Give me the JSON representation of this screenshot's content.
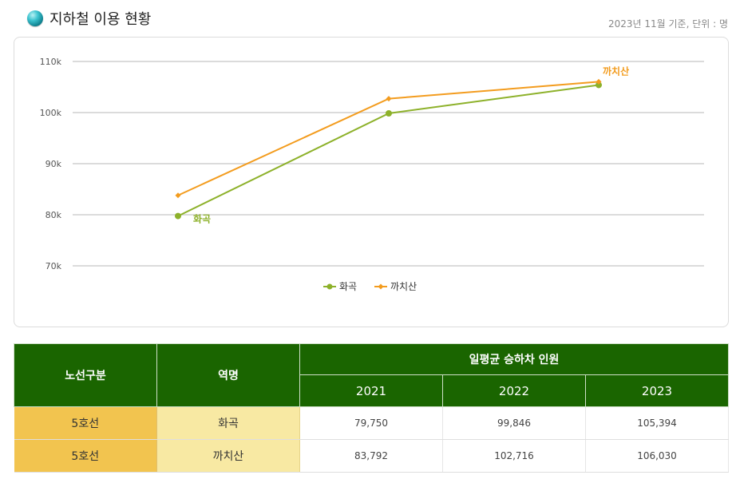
{
  "header": {
    "title": "지하철 이용 현황",
    "note": "2023년 11월 기준, 단위 : 명"
  },
  "colors": {
    "hwagok": "#8db12a",
    "kkachisan": "#f39c1e",
    "header_green": "#1a6500"
  },
  "chart_data": {
    "type": "line",
    "x": [
      "2021",
      "2022",
      "2023"
    ],
    "ylim": [
      70000,
      110000
    ],
    "y_ticks": [
      70000,
      80000,
      90000,
      100000,
      110000
    ],
    "y_tick_labels": [
      "70k",
      "80k",
      "90k",
      "100k",
      "110k"
    ],
    "grid": true,
    "legend_position": "bottom-center",
    "series": [
      {
        "name": "화곡",
        "values": [
          79750,
          99846,
          105394
        ],
        "color": "#8db12a",
        "marker": "circle",
        "label_at": 0
      },
      {
        "name": "까치산",
        "values": [
          83792,
          102716,
          106030
        ],
        "color": "#f39c1e",
        "marker": "diamond",
        "label_at": 2
      }
    ]
  },
  "table": {
    "col_line": "노선구분",
    "col_station": "역명",
    "col_group": "일평균 승하차 인원",
    "years": [
      "2021",
      "2022",
      "2023"
    ],
    "rows": [
      {
        "line": "5호선",
        "station": "화곡",
        "values": [
          "79,750",
          "99,846",
          "105,394"
        ]
      },
      {
        "line": "5호선",
        "station": "까치산",
        "values": [
          "83,792",
          "102,716",
          "106,030"
        ]
      }
    ]
  }
}
